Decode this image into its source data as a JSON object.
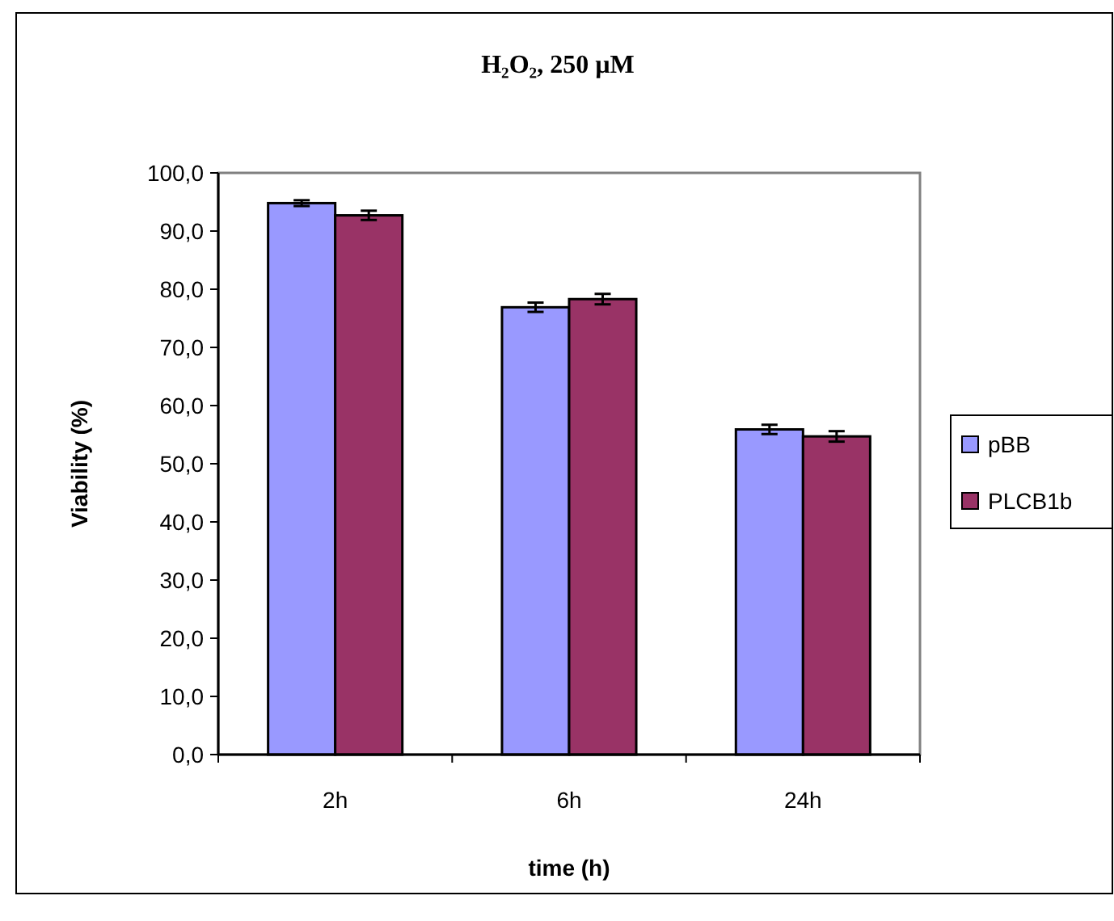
{
  "chart_data": {
    "type": "bar",
    "title": "H₂O₂, 250 µM",
    "xlabel": "time (h)",
    "ylabel": "Viability (%)",
    "categories": [
      "2h",
      "6h",
      "24h"
    ],
    "series": [
      {
        "name": "pBB",
        "color": "#9999ff",
        "values": [
          94.8,
          76.9,
          55.9
        ],
        "errors": [
          0.5,
          0.8,
          0.8
        ]
      },
      {
        "name": "PLCB1b",
        "color": "#993366",
        "values": [
          92.7,
          78.3,
          54.7
        ],
        "errors": [
          0.8,
          0.9,
          0.9
        ]
      }
    ],
    "ylim": [
      0,
      100
    ],
    "yticks": [
      {
        "value": 0,
        "label": "0,0"
      },
      {
        "value": 10,
        "label": "10,0"
      },
      {
        "value": 20,
        "label": "20,0"
      },
      {
        "value": 30,
        "label": "30,0"
      },
      {
        "value": 40,
        "label": "40,0"
      },
      {
        "value": 50,
        "label": "50,0"
      },
      {
        "value": 60,
        "label": "60,0"
      },
      {
        "value": 70,
        "label": "70,0"
      },
      {
        "value": 80,
        "label": "80,0"
      },
      {
        "value": 90,
        "label": "90,0"
      },
      {
        "value": 100,
        "label": "100,0"
      }
    ],
    "legend": "right"
  }
}
